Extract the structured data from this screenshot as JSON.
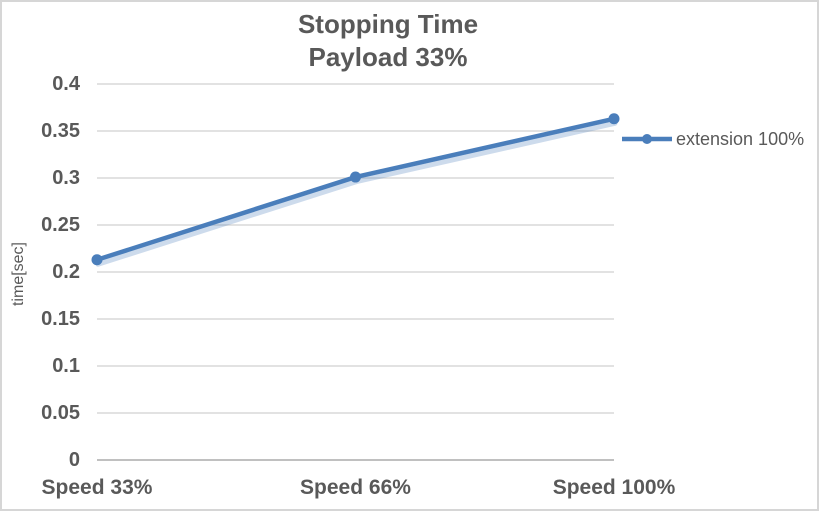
{
  "chart_data": {
    "type": "line",
    "title": "Stopping Time",
    "subtitle": "Payload 33%",
    "xlabel": "",
    "ylabel": "time[sec]",
    "categories": [
      "Speed 33%",
      "Speed 66%",
      "Speed 100%"
    ],
    "series": [
      {
        "name": "extension 100%",
        "values": [
          0.213,
          0.301,
          0.363
        ],
        "color": "#4a7ebb",
        "marker": "circle"
      }
    ],
    "ylim": [
      0,
      0.4
    ],
    "y_ticks": [
      0,
      0.05,
      0.1,
      0.15,
      0.2,
      0.25,
      0.3,
      0.35,
      0.4
    ],
    "y_tick_labels": [
      "0",
      "0.05",
      "0.1",
      "0.15",
      "0.2",
      "0.25",
      "0.3",
      "0.35",
      "0.4"
    ],
    "grid": "horizontal",
    "legend_position": "right",
    "colors": {
      "line": "#4a7ebb",
      "line_shadow": "rgba(74,126,187,0.28)",
      "gridline": "#d9d9d9",
      "axis_line": "#c0c0c0",
      "text": "#595959"
    }
  }
}
